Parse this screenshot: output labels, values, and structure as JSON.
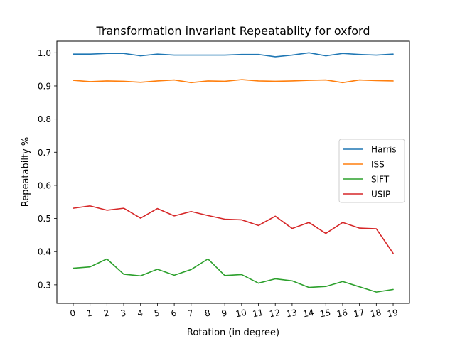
{
  "chart_data": {
    "type": "line",
    "title": "Transformation invariant Repeatablity for oxford",
    "xlabel": "Rotation (in degree)",
    "ylabel": "Repeatabilty %",
    "x": [
      0,
      1,
      2,
      3,
      4,
      5,
      6,
      7,
      8,
      9,
      10,
      11,
      12,
      13,
      14,
      15,
      16,
      17,
      18,
      19
    ],
    "x_tick_labels": [
      "0",
      "1",
      "2",
      "3",
      "4",
      "5",
      "6",
      "7",
      "8",
      "9",
      "10",
      "11",
      "12",
      "13",
      "14",
      "15",
      "16",
      "17",
      "18",
      "19"
    ],
    "xlim": [
      -0.97,
      19.97
    ],
    "ylim": [
      0.244,
      1.035
    ],
    "y_ticks": [
      0.3,
      0.4,
      0.5,
      0.6,
      0.7,
      0.8,
      0.9,
      1.0
    ],
    "y_tick_labels": [
      "0.3",
      "0.4",
      "0.5",
      "0.6",
      "0.7",
      "0.8",
      "0.9",
      "1.0"
    ],
    "grid": false,
    "legend_position": "center-right",
    "series": [
      {
        "name": "Harris",
        "color": "#1f77b4",
        "values": [
          0.996,
          0.996,
          0.998,
          0.998,
          0.991,
          0.996,
          0.993,
          0.993,
          0.993,
          0.993,
          0.995,
          0.995,
          0.988,
          0.993,
          1.0,
          0.991,
          0.998,
          0.995,
          0.993,
          0.996
        ]
      },
      {
        "name": "ISS",
        "color": "#ff7f0e",
        "values": [
          0.917,
          0.913,
          0.915,
          0.914,
          0.911,
          0.915,
          0.918,
          0.91,
          0.915,
          0.914,
          0.919,
          0.915,
          0.914,
          0.915,
          0.917,
          0.918,
          0.91,
          0.918,
          0.916,
          0.915
        ]
      },
      {
        "name": "SIFT",
        "color": "#2ca02c",
        "values": [
          0.35,
          0.354,
          0.378,
          0.332,
          0.327,
          0.347,
          0.329,
          0.346,
          0.378,
          0.328,
          0.331,
          0.305,
          0.318,
          0.312,
          0.292,
          0.295,
          0.31,
          0.294,
          0.278,
          0.286
        ]
      },
      {
        "name": "USIP",
        "color": "#d62728",
        "values": [
          0.531,
          0.538,
          0.525,
          0.531,
          0.501,
          0.53,
          0.508,
          0.521,
          0.509,
          0.498,
          0.496,
          0.479,
          0.507,
          0.47,
          0.488,
          0.455,
          0.488,
          0.471,
          0.469,
          0.395
        ]
      }
    ]
  }
}
